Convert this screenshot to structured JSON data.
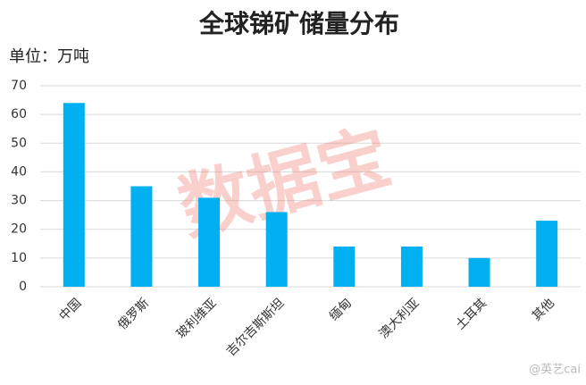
{
  "chart_data": {
    "type": "bar",
    "title": "全球锑矿储量分布",
    "unit_label": "单位：万吨",
    "categories": [
      "中国",
      "俄罗斯",
      "玻利维亚",
      "吉尔吉斯斯坦",
      "缅甸",
      "澳大利亚",
      "土耳其",
      "其他"
    ],
    "values": [
      64,
      35,
      31,
      26,
      14,
      14,
      10,
      23
    ],
    "color": "#00b0f0",
    "ylim": [
      0,
      70
    ],
    "yticks": [
      0,
      10,
      20,
      30,
      40,
      50,
      60,
      70
    ],
    "grid": true,
    "watermark": "数据宝",
    "credit": "@英艺cai"
  }
}
